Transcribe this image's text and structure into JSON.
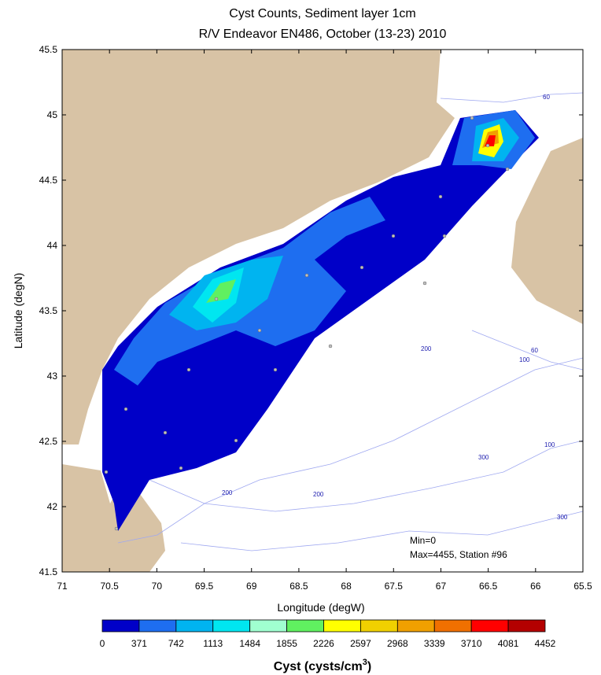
{
  "title": [
    "Cyst Counts, Sediment layer 1cm",
    "R/V Endeavor EN486, October (13-23) 2010"
  ],
  "x_axis": {
    "label": "Longitude (degW)",
    "lim": [
      71,
      65.5
    ],
    "ticks": [
      71,
      70.5,
      70,
      69.5,
      69,
      68.5,
      68,
      67.5,
      67,
      66.5,
      66,
      65.5
    ]
  },
  "y_axis": {
    "label": "Latitude (degN)",
    "lim": [
      41.5,
      45.5
    ],
    "ticks": [
      41.5,
      42,
      42.5,
      43,
      43.5,
      44,
      44.5,
      45,
      45.5
    ]
  },
  "annotations": [
    "Min=0",
    "Max=4455, Station #96"
  ],
  "contour_labels": [
    "60",
    "60",
    "100",
    "100",
    "200",
    "200",
    "200",
    "300",
    "300"
  ],
  "colorbar": {
    "label": [
      "Cyst (cysts/cm",
      "3",
      ")"
    ],
    "levels": [
      0,
      371,
      742,
      1113,
      1484,
      1855,
      2226,
      2597,
      2968,
      3339,
      3710,
      4081,
      4452
    ],
    "colors": [
      "#0000c8",
      "#1e6ef0",
      "#00b4f0",
      "#00e6f0",
      "#a0ffd0",
      "#60f060",
      "#ffff00",
      "#f0d000",
      "#f0a000",
      "#f07000",
      "#ff0000",
      "#b40000"
    ]
  }
}
